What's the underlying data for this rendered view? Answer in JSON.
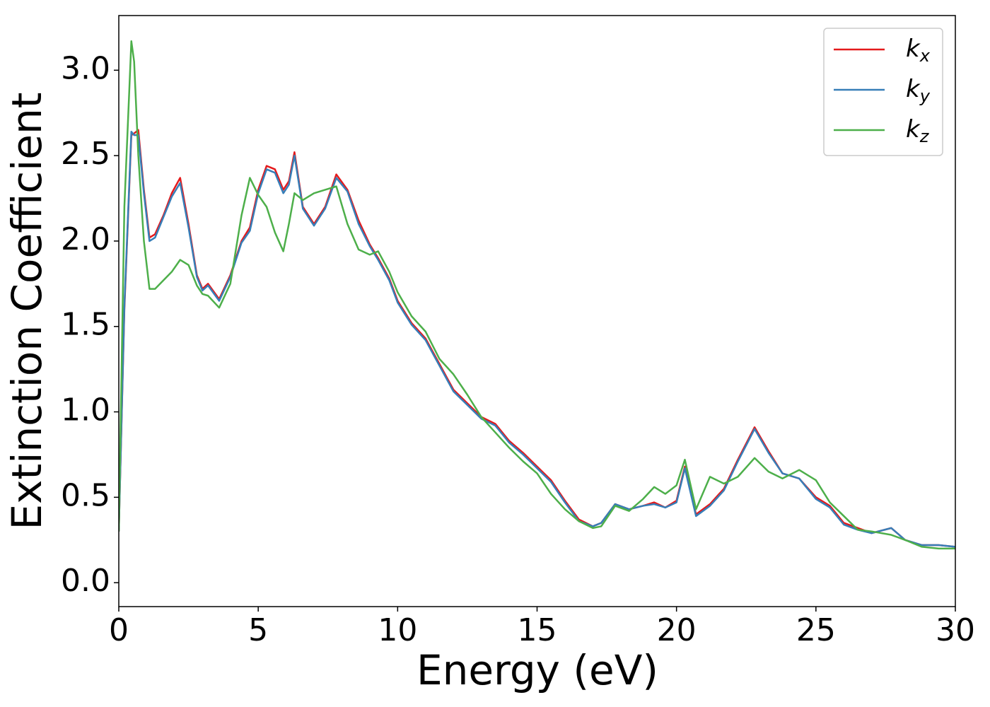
{
  "chart_data": {
    "type": "line",
    "xlabel": "Energy (eV)",
    "ylabel": "Extinction Coefficient",
    "x": [
      0,
      0.2,
      0.45,
      0.55,
      0.7,
      0.9,
      1.1,
      1.3,
      1.6,
      1.9,
      2.2,
      2.5,
      2.8,
      3.0,
      3.2,
      3.6,
      4.0,
      4.4,
      4.7,
      5.0,
      5.3,
      5.6,
      5.9,
      6.1,
      6.3,
      6.6,
      7.0,
      7.4,
      7.8,
      8.2,
      8.6,
      9.0,
      9.3,
      9.7,
      10,
      10.5,
      11,
      11.5,
      12,
      12.5,
      13,
      13.5,
      14,
      14.5,
      15,
      15.5,
      16,
      16.5,
      17,
      17.3,
      17.8,
      18.3,
      18.8,
      19.2,
      19.6,
      20,
      20.3,
      20.7,
      21.2,
      21.7,
      22.2,
      22.8,
      23.3,
      23.8,
      24.4,
      25,
      25.5,
      26,
      26.5,
      27,
      27.7,
      28.2,
      28.8,
      29.4,
      30
    ],
    "series": [
      {
        "name": "kx",
        "color": "#e41a1c",
        "values": [
          0.3,
          1.6,
          2.62,
          2.63,
          2.65,
          2.3,
          2.02,
          2.04,
          2.15,
          2.28,
          2.37,
          2.1,
          1.8,
          1.72,
          1.75,
          1.66,
          1.8,
          2.0,
          2.08,
          2.3,
          2.44,
          2.42,
          2.3,
          2.35,
          2.52,
          2.2,
          2.1,
          2.2,
          2.39,
          2.3,
          2.12,
          1.98,
          1.9,
          1.78,
          1.65,
          1.52,
          1.43,
          1.28,
          1.13,
          1.05,
          0.97,
          0.93,
          0.83,
          0.76,
          0.68,
          0.6,
          0.48,
          0.37,
          0.33,
          0.35,
          0.46,
          0.43,
          0.45,
          0.47,
          0.44,
          0.48,
          0.68,
          0.4,
          0.46,
          0.55,
          0.72,
          0.91,
          0.77,
          0.64,
          0.61,
          0.5,
          0.45,
          0.35,
          0.32,
          0.29,
          0.32,
          0.25,
          0.22,
          0.22,
          0.21
        ]
      },
      {
        "name": "ky",
        "color": "#377eb8",
        "values": [
          0.3,
          1.62,
          2.64,
          2.62,
          2.62,
          2.28,
          2.0,
          2.02,
          2.14,
          2.26,
          2.34,
          2.08,
          1.79,
          1.71,
          1.74,
          1.65,
          1.79,
          1.99,
          2.06,
          2.28,
          2.42,
          2.4,
          2.28,
          2.33,
          2.5,
          2.19,
          2.09,
          2.19,
          2.37,
          2.29,
          2.1,
          1.97,
          1.89,
          1.77,
          1.64,
          1.51,
          1.42,
          1.27,
          1.12,
          1.04,
          0.96,
          0.92,
          0.82,
          0.75,
          0.67,
          0.59,
          0.47,
          0.36,
          0.33,
          0.35,
          0.46,
          0.43,
          0.45,
          0.46,
          0.44,
          0.47,
          0.67,
          0.39,
          0.45,
          0.54,
          0.71,
          0.9,
          0.76,
          0.64,
          0.61,
          0.49,
          0.44,
          0.34,
          0.31,
          0.29,
          0.32,
          0.25,
          0.22,
          0.22,
          0.21
        ]
      },
      {
        "name": "kz",
        "color": "#4daf4a",
        "values": [
          0.3,
          2.2,
          3.17,
          3.05,
          2.5,
          2.0,
          1.72,
          1.72,
          1.77,
          1.82,
          1.89,
          1.86,
          1.74,
          1.69,
          1.68,
          1.61,
          1.75,
          2.15,
          2.37,
          2.27,
          2.2,
          2.05,
          1.94,
          2.1,
          2.28,
          2.24,
          2.28,
          2.3,
          2.32,
          2.1,
          1.95,
          1.92,
          1.94,
          1.82,
          1.7,
          1.56,
          1.47,
          1.31,
          1.22,
          1.1,
          0.97,
          0.88,
          0.79,
          0.71,
          0.64,
          0.52,
          0.43,
          0.36,
          0.32,
          0.33,
          0.45,
          0.42,
          0.49,
          0.56,
          0.52,
          0.57,
          0.72,
          0.43,
          0.62,
          0.58,
          0.62,
          0.73,
          0.65,
          0.61,
          0.66,
          0.6,
          0.47,
          0.39,
          0.31,
          0.3,
          0.28,
          0.25,
          0.21,
          0.2,
          0.2
        ]
      }
    ],
    "xlim": [
      0,
      30
    ],
    "xticks": [
      0,
      5,
      10,
      15,
      20,
      25,
      30
    ],
    "ylim": [
      -0.14,
      3.32
    ],
    "yticks": [
      {
        "value": 0,
        "label": "0.0"
      },
      0.5,
      {
        "value": 1,
        "label": "1.0"
      },
      1.5,
      {
        "value": 2,
        "label": "2.0"
      },
      2.5,
      {
        "value": 3,
        "label": "3.0"
      }
    ],
    "legend": "upper right",
    "grid": false
  }
}
